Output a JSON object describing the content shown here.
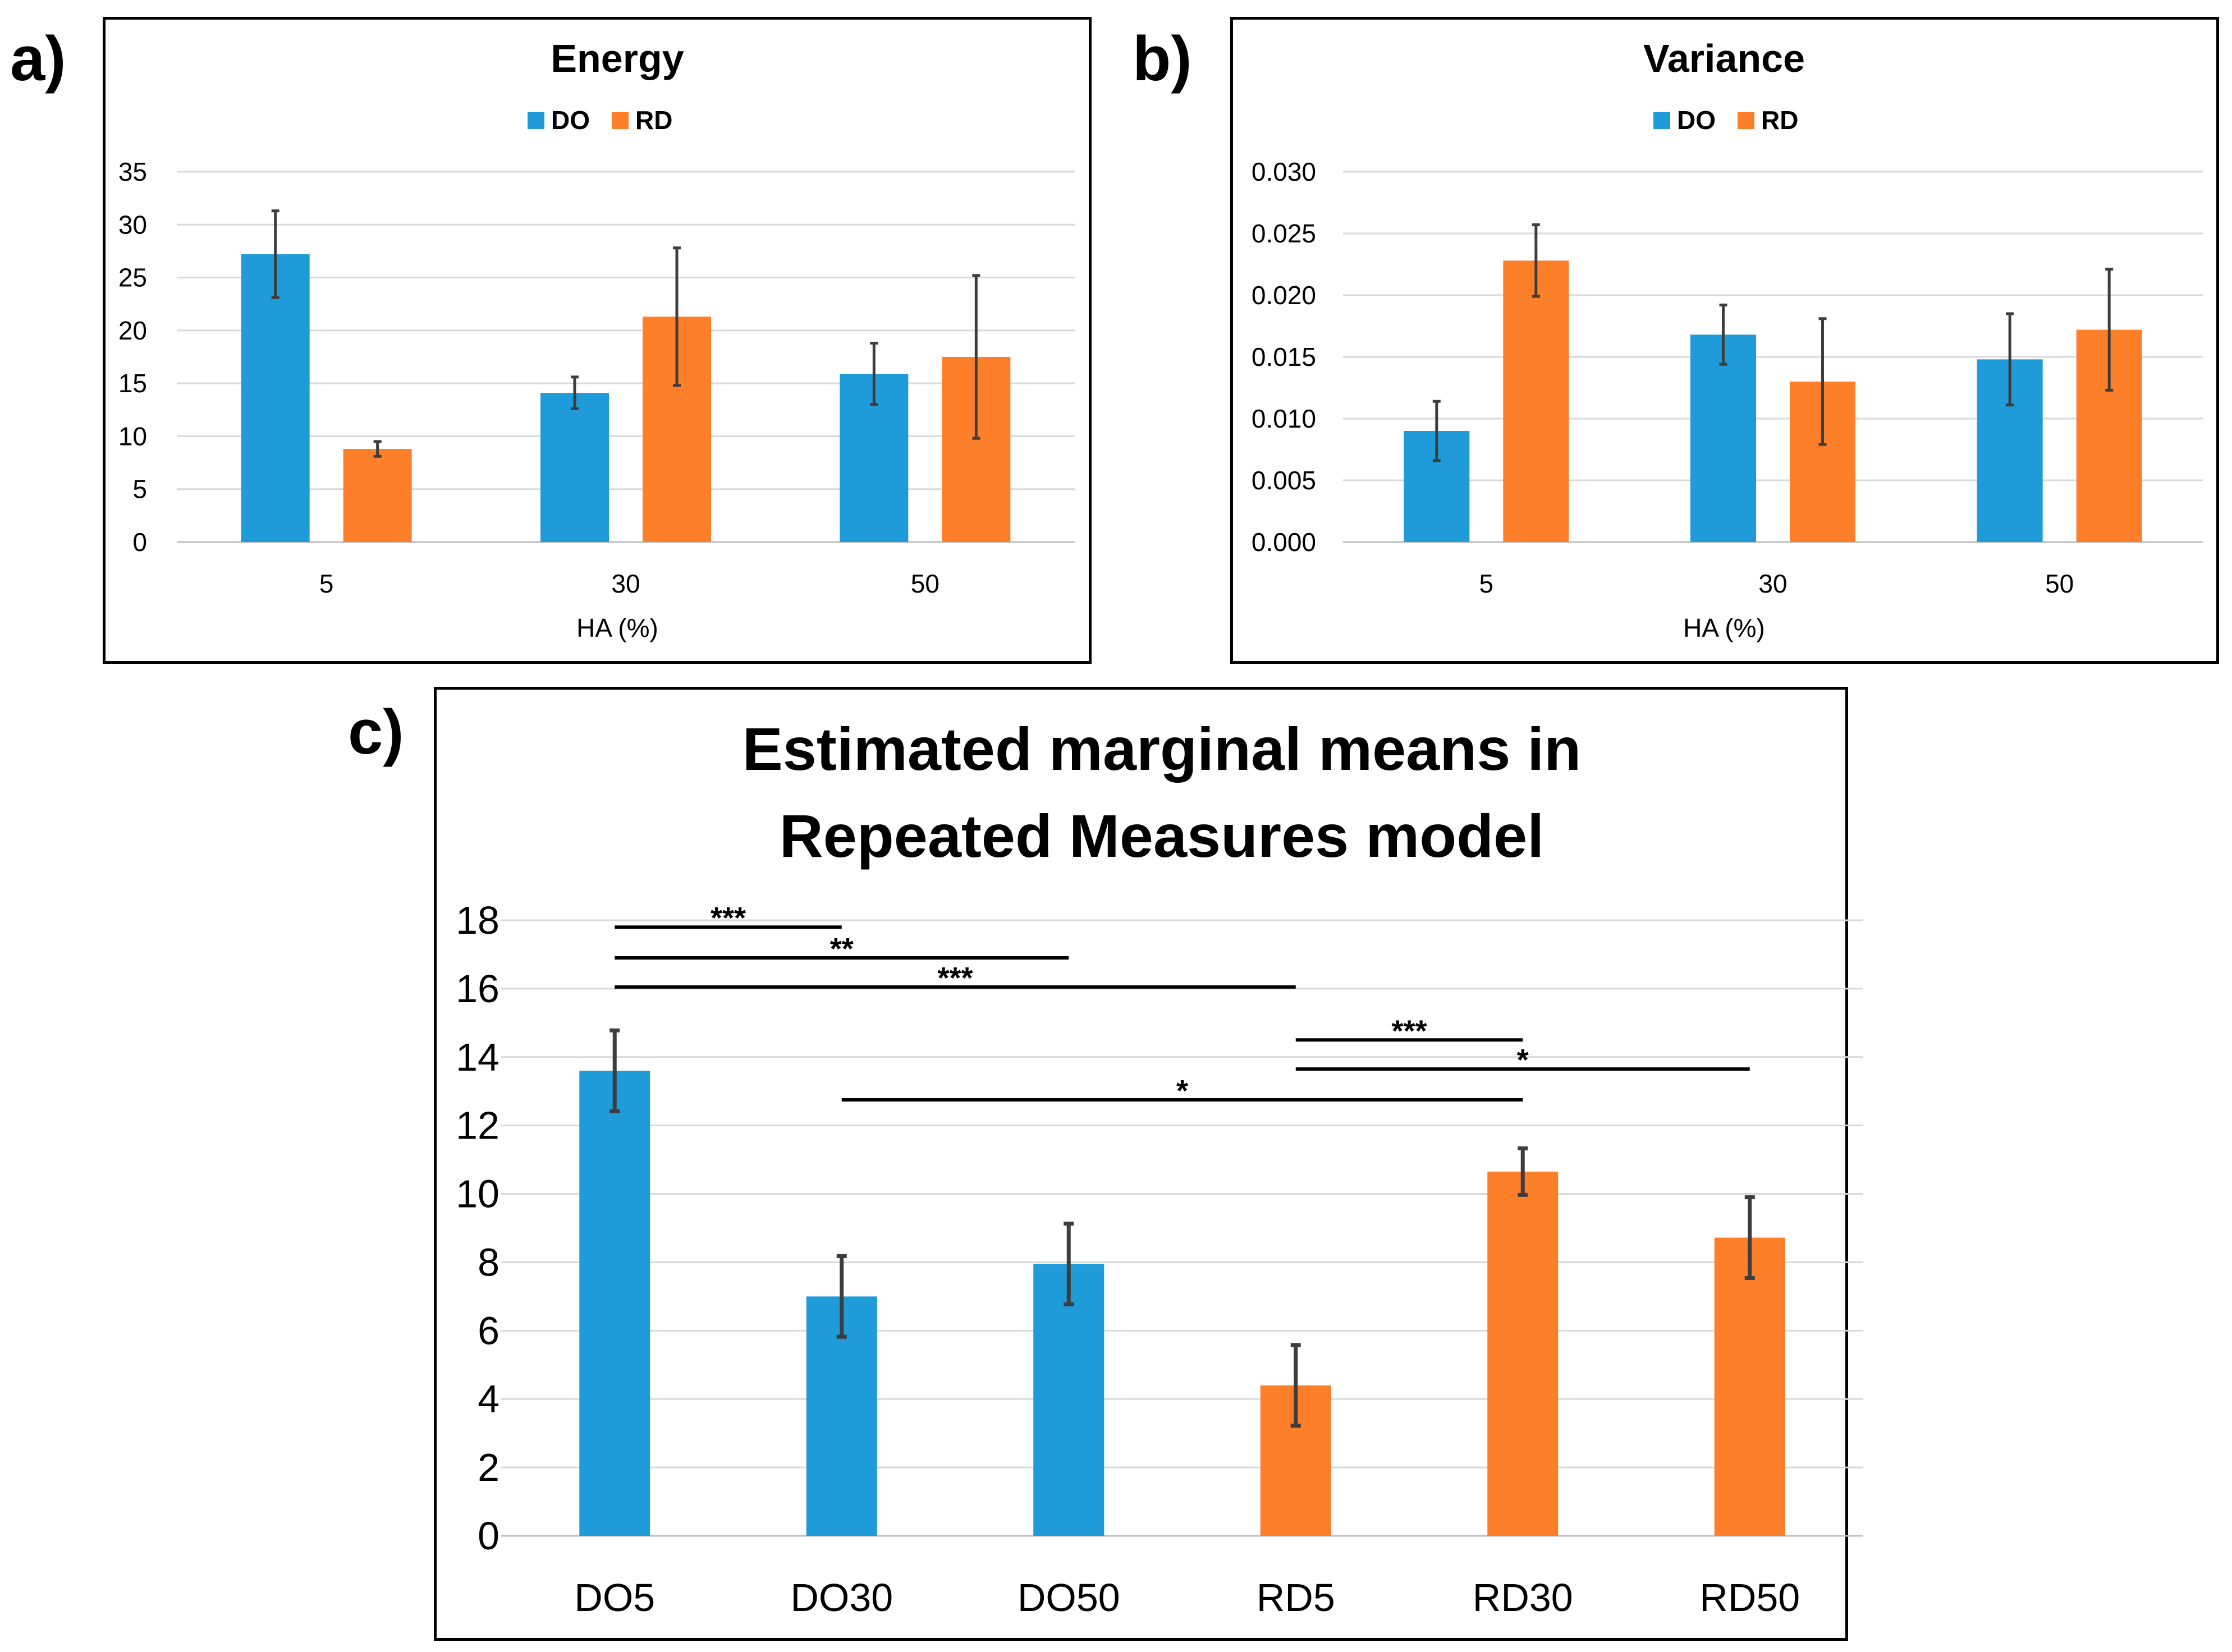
{
  "colors": {
    "do": "#1f9bd9",
    "rd": "#fe7f29",
    "grid": "#d9d9d9",
    "axis": "#bfbfbf",
    "error": "#3d3d3d",
    "text": "#000000"
  },
  "panels": {
    "a": "a)",
    "b": "b)",
    "c": "c)"
  },
  "chart_data": [
    {
      "id": "a",
      "type": "bar",
      "title": "Energy",
      "xlabel": "HA (%)",
      "ylabel": "",
      "categories": [
        "5",
        "30",
        "50"
      ],
      "ylim": [
        0,
        35
      ],
      "yticks": [
        0,
        5,
        10,
        15,
        20,
        25,
        30,
        35
      ],
      "ytick_labels": [
        "0",
        "5",
        "10",
        "15",
        "20",
        "25",
        "30",
        "35"
      ],
      "legend": {
        "position": "top-center",
        "entries": [
          "DO",
          "RD"
        ]
      },
      "grid": true,
      "series": [
        {
          "name": "DO",
          "values": [
            27.2,
            14.1,
            15.9
          ],
          "errors": [
            4.1,
            1.5,
            2.9
          ]
        },
        {
          "name": "RD",
          "values": [
            8.8,
            21.3,
            17.5
          ],
          "errors": [
            0.7,
            6.5,
            7.7
          ]
        }
      ]
    },
    {
      "id": "b",
      "type": "bar",
      "title": "Variance",
      "xlabel": "HA (%)",
      "ylabel": "",
      "categories": [
        "5",
        "30",
        "50"
      ],
      "ylim": [
        0,
        0.03
      ],
      "yticks": [
        0,
        0.005,
        0.01,
        0.015,
        0.02,
        0.025,
        0.03
      ],
      "ytick_labels": [
        "0.000",
        "0.005",
        "0.010",
        "0.015",
        "0.020",
        "0.025",
        "0.030"
      ],
      "legend": {
        "position": "top-center",
        "entries": [
          "DO",
          "RD"
        ]
      },
      "grid": true,
      "series": [
        {
          "name": "DO",
          "values": [
            0.009,
            0.0168,
            0.0148
          ],
          "errors": [
            0.0024,
            0.0024,
            0.0037
          ]
        },
        {
          "name": "RD",
          "values": [
            0.0228,
            0.013,
            0.0172
          ],
          "errors": [
            0.0029,
            0.0051,
            0.0049
          ]
        }
      ]
    },
    {
      "id": "c",
      "type": "bar",
      "title": "Estimated marginal means in Repeated Measures model",
      "title_lines": [
        "Estimated marginal means in",
        "Repeated Measures model"
      ],
      "xlabel": "",
      "ylabel": "",
      "categories": [
        "DO5",
        "DO30",
        "DO50",
        "RD5",
        "RD30",
        "RD50"
      ],
      "ylim": [
        0,
        18
      ],
      "yticks": [
        0,
        2,
        4,
        6,
        8,
        10,
        12,
        14,
        16,
        18
      ],
      "ytick_labels": [
        "0",
        "2",
        "4",
        "6",
        "8",
        "10",
        "12",
        "14",
        "16",
        "18"
      ],
      "grid": true,
      "bar_groups": [
        "DO",
        "DO",
        "DO",
        "RD",
        "RD",
        "RD"
      ],
      "values": [
        13.6,
        7.0,
        7.95,
        4.4,
        10.65,
        8.72
      ],
      "errors": [
        1.18,
        1.18,
        1.18,
        1.18,
        0.68,
        1.18
      ],
      "significance": [
        {
          "from": "DO5",
          "to": "DO30",
          "y": 17.8,
          "label": "***"
        },
        {
          "from": "DO5",
          "to": "DO50",
          "y": 16.9,
          "label": "**"
        },
        {
          "from": "DO5",
          "to": "RD5",
          "y": 16.05,
          "label": "***"
        },
        {
          "from": "RD5",
          "to": "RD30",
          "y": 14.5,
          "label": "***"
        },
        {
          "from": "RD5",
          "to": "RD50",
          "y": 13.65,
          "label": "*"
        },
        {
          "from": "DO30",
          "to": "RD30",
          "y": 12.75,
          "label": "*"
        }
      ]
    }
  ]
}
